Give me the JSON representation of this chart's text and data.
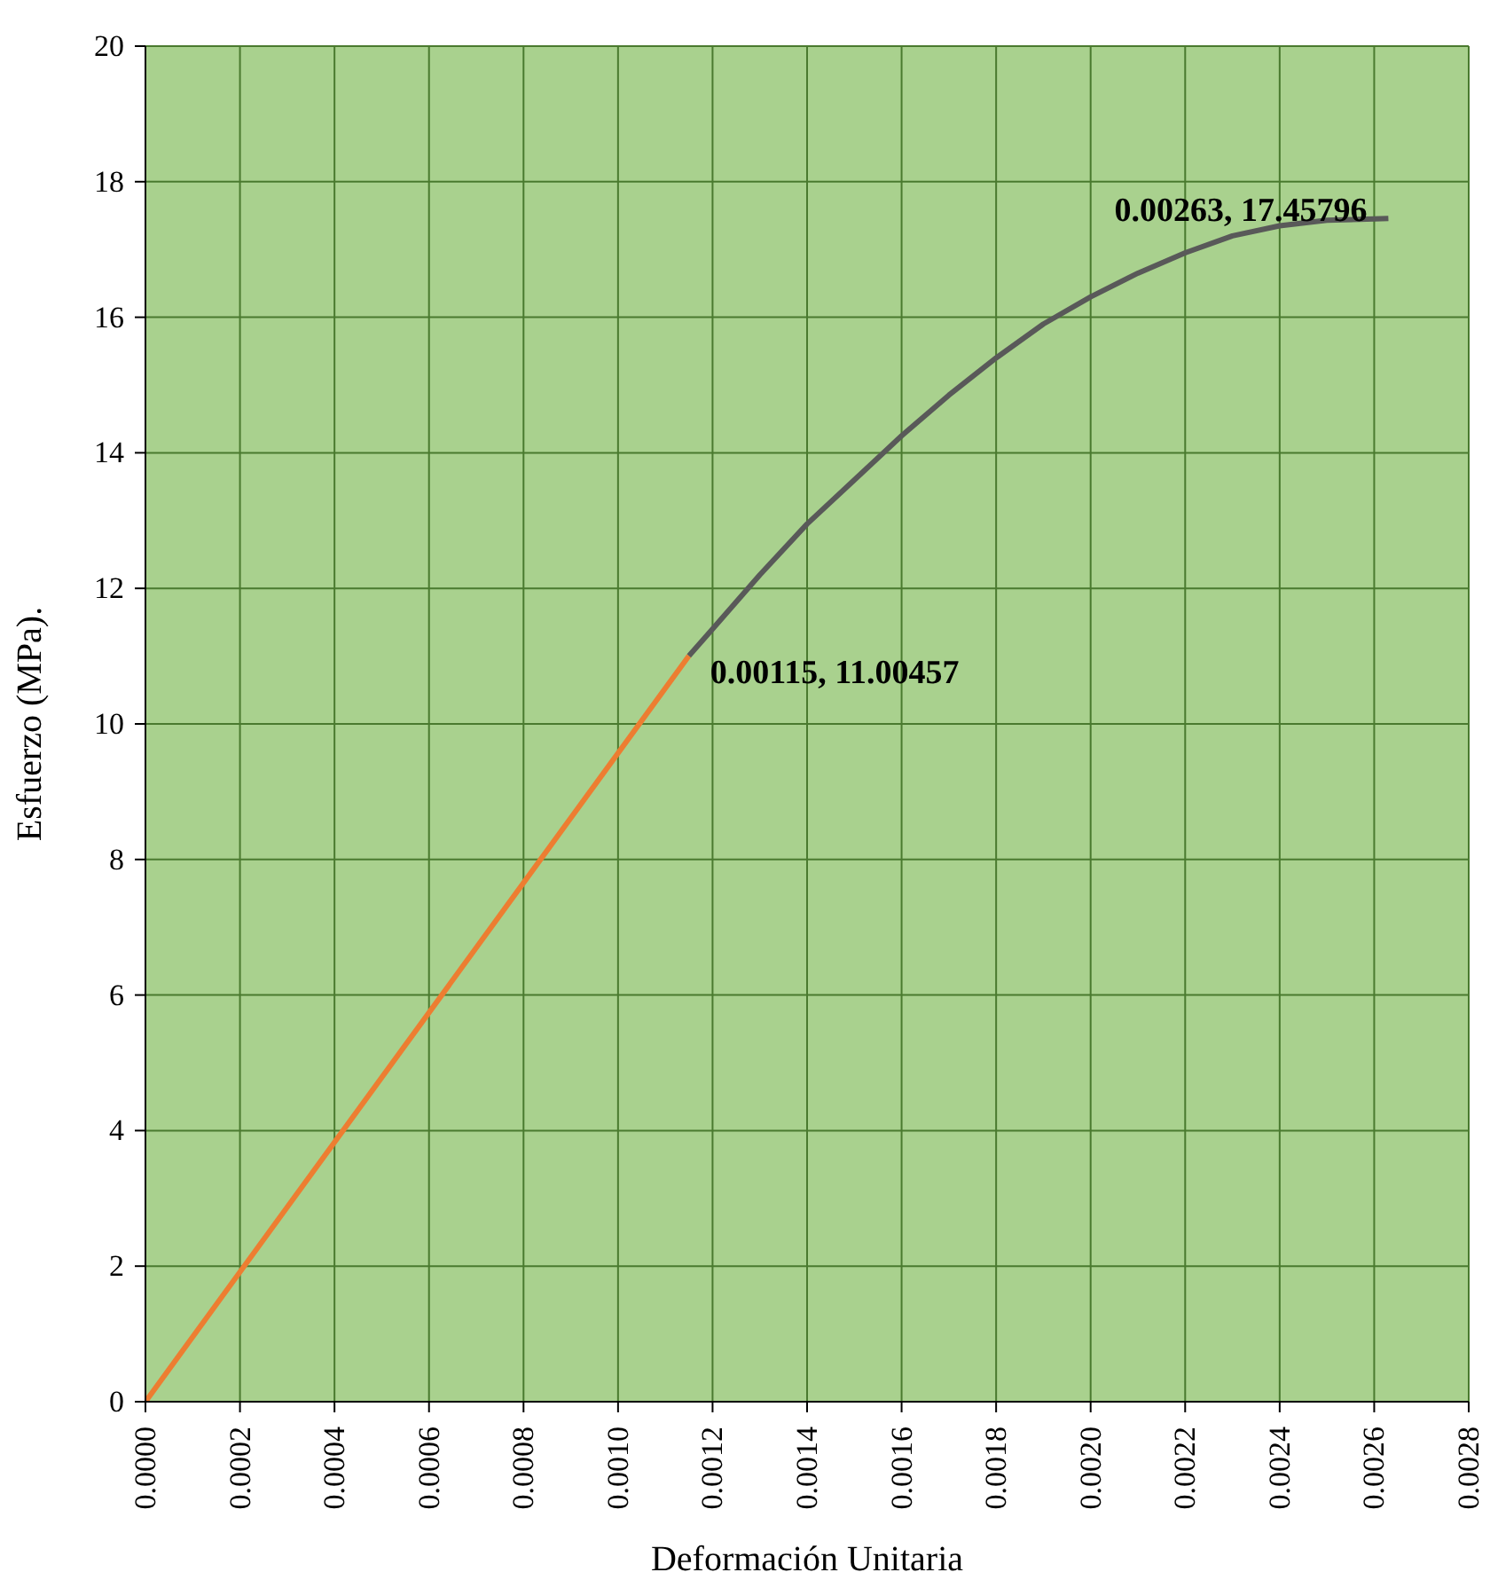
{
  "chart_data": {
    "type": "line",
    "xlabel": "Deformación Unitaria",
    "ylabel": "Esfuerzo (MPa).",
    "series": [
      {
        "color": "#ed7d31",
        "x": [
          0,
          0.00115
        ],
        "values": [
          0,
          11.00457
        ]
      },
      {
        "color": "#595959",
        "x": [
          0.00115,
          0.0012,
          0.0013,
          0.0014,
          0.0015,
          0.0016,
          0.0017,
          0.0018,
          0.0019,
          0.002,
          0.0021,
          0.0022,
          0.0023,
          0.0024,
          0.0025,
          0.0026,
          0.00263
        ],
        "values": [
          11.00457,
          11.4,
          12.2,
          12.95,
          13.6,
          14.25,
          14.85,
          15.4,
          15.9,
          16.3,
          16.65,
          16.95,
          17.2,
          17.35,
          17.43,
          17.45,
          17.45796
        ]
      }
    ],
    "annotations": [
      {
        "text": "0.00115, 11.00457",
        "x": 0.00115,
        "y": 11.00457
      },
      {
        "text": "0.00263, 17.45796",
        "x": 0.00263,
        "y": 17.45796
      }
    ],
    "xlim": [
      0,
      0.0028
    ],
    "xticks": [
      {
        "value": 0,
        "label": "0.0000"
      },
      {
        "value": 0.0002,
        "label": "0.0002"
      },
      {
        "value": 0.0004,
        "label": "0.0004"
      },
      {
        "value": 0.0006,
        "label": "0.0006"
      },
      {
        "value": 0.0008,
        "label": "0.0008"
      },
      {
        "value": 0.001,
        "label": "0.0010"
      },
      {
        "value": 0.0012,
        "label": "0.0012"
      },
      {
        "value": 0.0014,
        "label": "0.0014"
      },
      {
        "value": 0.0016,
        "label": "0.0016"
      },
      {
        "value": 0.0018,
        "label": "0.0018"
      },
      {
        "value": 0.002,
        "label": "0.0020"
      },
      {
        "value": 0.0022,
        "label": "0.0022"
      },
      {
        "value": 0.0024,
        "label": "0.0024"
      },
      {
        "value": 0.0026,
        "label": "0.0026"
      },
      {
        "value": 0.0028,
        "label": "0.0028"
      }
    ],
    "ylim": [
      0,
      20
    ],
    "yticks": [
      0,
      2,
      4,
      6,
      8,
      10,
      12,
      14,
      16,
      18,
      20
    ],
    "grid": true,
    "marker": "none",
    "line_style": "solid"
  }
}
